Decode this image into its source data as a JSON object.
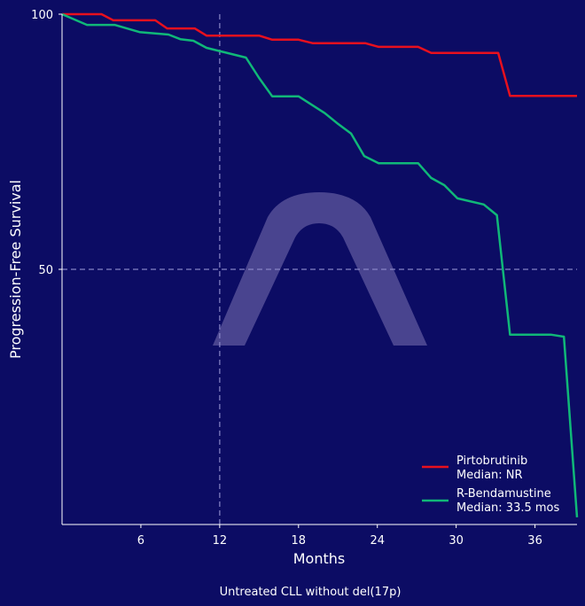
{
  "chart_data": {
    "type": "line",
    "title": "",
    "xlabel": "Months",
    "ylabel": "Progression-Free Survival",
    "footer": "Untreated CLL without del(17p)",
    "xlim": [
      0,
      39.2
    ],
    "ylim": [
      0,
      100
    ],
    "x_ticks": [
      6,
      12,
      18,
      24,
      30,
      36
    ],
    "y_ticks": [
      50,
      100
    ],
    "reference_lines": {
      "x": 12,
      "y": 50
    },
    "legend_placement": "lower-right",
    "watermark": "arch logo",
    "colors": {
      "background": "#0c0c64",
      "reference": "#8a88c8",
      "watermark": "#6a63a6"
    },
    "series": [
      {
        "name": "Pirtobrutinib",
        "label": "Median: NR",
        "color": "#e8101e",
        "x": [
          0,
          3,
          3.9,
          7.1,
          8,
          10.1,
          11,
          15,
          16,
          18,
          19.1,
          23.1,
          24.1,
          27.1,
          28.1,
          33.2,
          34.1,
          39.2
        ],
        "y": [
          100,
          100,
          98.8,
          98.8,
          97.2,
          97.2,
          95.8,
          95.8,
          95,
          95,
          94.3,
          94.3,
          93.6,
          93.6,
          92.4,
          92.4,
          84,
          84
        ]
      },
      {
        "name": "R-Bendamustine",
        "label": "Median: 33.5 mos",
        "color": "#10b878",
        "x": [
          0,
          1.9,
          4,
          5.9,
          8.1,
          9,
          10,
          11,
          14,
          15,
          16,
          18,
          20,
          21,
          22,
          23,
          24.1,
          27.1,
          28.1,
          29.1,
          30.1,
          32.1,
          33.1,
          34.1,
          37.2,
          38.2,
          39.2
        ],
        "y": [
          100,
          97.9,
          97.9,
          96.5,
          96,
          95.1,
          94.8,
          93.4,
          91.5,
          87.5,
          83.9,
          83.9,
          80.6,
          78.5,
          76.6,
          72.2,
          70.8,
          70.8,
          67.9,
          66.5,
          63.9,
          62.7,
          60.6,
          37.2,
          37.2,
          36.8,
          1.4
        ]
      }
    ]
  }
}
